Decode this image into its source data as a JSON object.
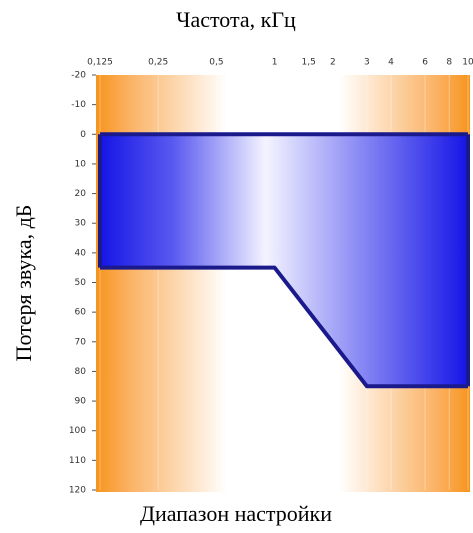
{
  "chart_data": {
    "type": "range-area",
    "title": "Частота, кГц",
    "y_label": "Потеря звука, дБ",
    "x_label": "Диапазон настройки",
    "x": [
      0.125,
      1,
      3,
      10
    ],
    "series": [
      {
        "color": "#1a1a8c",
        "values": [
          0,
          0,
          0,
          0
        ]
      },
      {
        "color": "#1a1a8c",
        "values": [
          45,
          45,
          85,
          85
        ]
      }
    ],
    "x_log": true,
    "y_inverted": true,
    "xlim": [
      0.125,
      10
    ],
    "ylim": [
      -20,
      120
    ],
    "xticks": [
      {
        "value": 0.125,
        "label": "0,125"
      },
      {
        "value": 0.25,
        "label": "0,25"
      },
      {
        "value": 0.5,
        "label": "0,5"
      },
      1,
      {
        "value": 1.5,
        "label": "1,5"
      },
      2,
      3,
      4,
      6,
      8,
      10
    ],
    "yticks": [
      -20,
      -10,
      0,
      10,
      20,
      30,
      40,
      50,
      60,
      70,
      80,
      90,
      100,
      110,
      120
    ]
  }
}
